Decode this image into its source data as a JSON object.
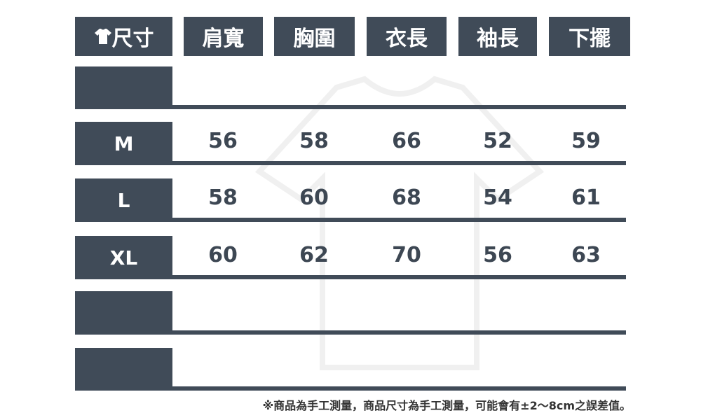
{
  "header": {
    "size_label": "尺寸",
    "columns": [
      "肩寬",
      "胸圍",
      "衣長",
      "袖長",
      "下擺"
    ]
  },
  "rows": [
    {
      "size": "",
      "values": [
        "",
        "",
        "",
        "",
        ""
      ]
    },
    {
      "size": "M",
      "values": [
        "56",
        "58",
        "66",
        "52",
        "59"
      ]
    },
    {
      "size": "L",
      "values": [
        "58",
        "60",
        "68",
        "54",
        "61"
      ]
    },
    {
      "size": "XL",
      "values": [
        "60",
        "62",
        "70",
        "56",
        "63"
      ]
    },
    {
      "size": "",
      "values": [
        "",
        "",
        "",
        "",
        ""
      ]
    },
    {
      "size": "",
      "values": [
        "",
        "",
        "",
        "",
        ""
      ]
    }
  ],
  "note": "※商品為手工測量，商品尺寸為手工測量，可能會有±2～8cm之誤差值。",
  "colors": {
    "primary": "#404b58"
  }
}
